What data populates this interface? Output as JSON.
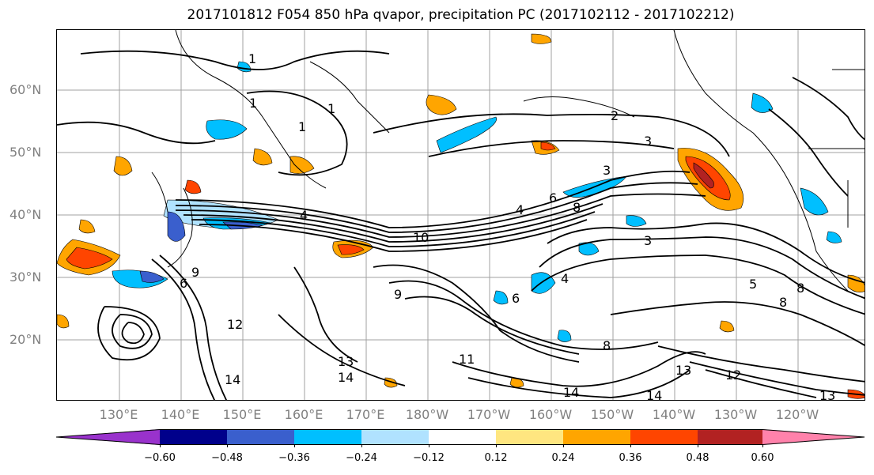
{
  "title": "2017101812 F054 850 hPa qvapor, precipitation PC (2017102112 - 2017102212)",
  "map": {
    "lat_labels": [
      "60°N",
      "50°N",
      "40°N",
      "30°N",
      "20°N"
    ],
    "lon_labels": [
      "130°E",
      "140°E",
      "150°E",
      "160°E",
      "170°E",
      "180°W",
      "170°W",
      "160°W",
      "150°W",
      "140°W",
      "130°W",
      "120°W"
    ],
    "contour_labels": [
      "1",
      "1",
      "1",
      "1",
      "2",
      "3",
      "3",
      "3",
      "4",
      "4",
      "4",
      "5",
      "6",
      "6",
      "6",
      "8",
      "8",
      "8",
      "8",
      "9",
      "9",
      "10",
      "11",
      "12",
      "12",
      "13",
      "13",
      "13",
      "14",
      "14",
      "14",
      "14"
    ],
    "contour_color": "#000000",
    "coastline_color": "#000000",
    "grid_color": "#a0a0a0"
  },
  "colorbar": {
    "ticks": [
      "−0.60",
      "−0.48",
      "−0.36",
      "−0.24",
      "−0.12",
      "0.12",
      "0.24",
      "0.36",
      "0.48",
      "0.60"
    ],
    "colors": [
      "#9932cc",
      "#00008b",
      "#3a5fcd",
      "#00bfff",
      "#b0e2ff",
      "#ffffff",
      "#ffe680",
      "#ffa500",
      "#ff4500",
      "#b22222",
      "#ff82ab"
    ]
  }
}
